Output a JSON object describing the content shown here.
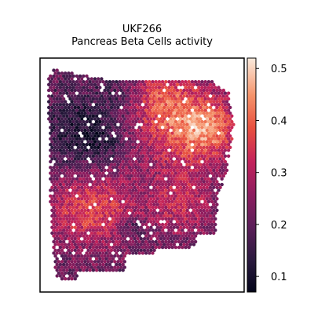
{
  "chart_data": {
    "type": "heatmap",
    "title": "UKF266",
    "subtitle": "Pancreas Beta Cells activity",
    "xlabel": "",
    "ylabel": "",
    "grid": false,
    "colormap": "rocket",
    "colorbar": {
      "range": [
        0.07,
        0.52
      ],
      "ticks": [
        0.1,
        0.2,
        0.3,
        0.4,
        0.5
      ],
      "tick_labels": [
        "0.1",
        "0.2",
        "0.3",
        "0.4",
        "0.5"
      ]
    },
    "spatial_pattern": {
      "left_region_mean_activity": 0.2,
      "upper_right_region_mean_activity": 0.42,
      "lower_middle_region_mean_activity": 0.36
    }
  }
}
